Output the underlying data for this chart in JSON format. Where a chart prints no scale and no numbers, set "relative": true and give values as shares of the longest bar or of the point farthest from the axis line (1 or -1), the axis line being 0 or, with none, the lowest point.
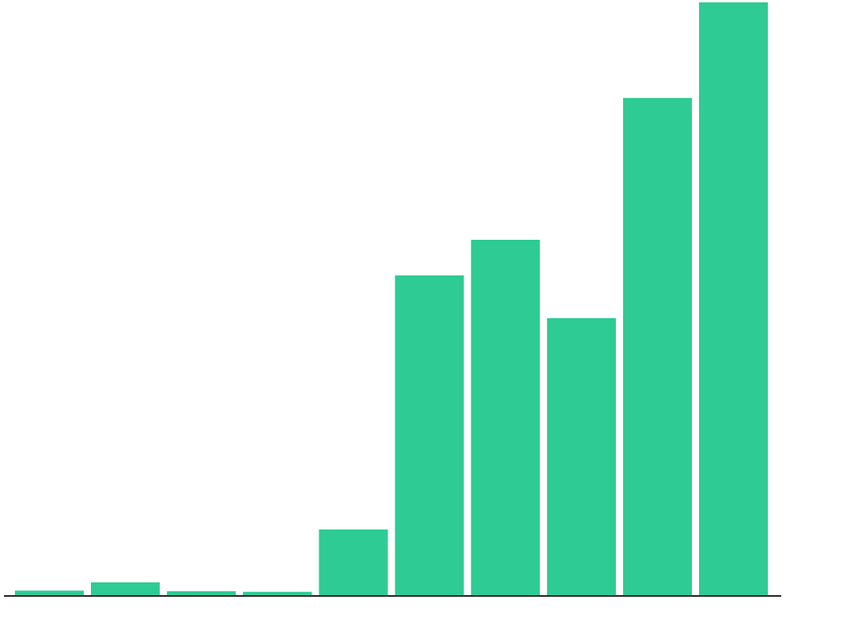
{
  "chart_data": {
    "type": "bar",
    "relative": true,
    "categories": [
      null,
      null,
      null,
      null,
      null,
      null,
      null,
      null,
      null,
      null
    ],
    "values": [
      0.009,
      0.023,
      0.008,
      0.007,
      0.112,
      0.54,
      0.6,
      0.468,
      0.839,
      1
    ],
    "color": "#2ecb94"
  }
}
